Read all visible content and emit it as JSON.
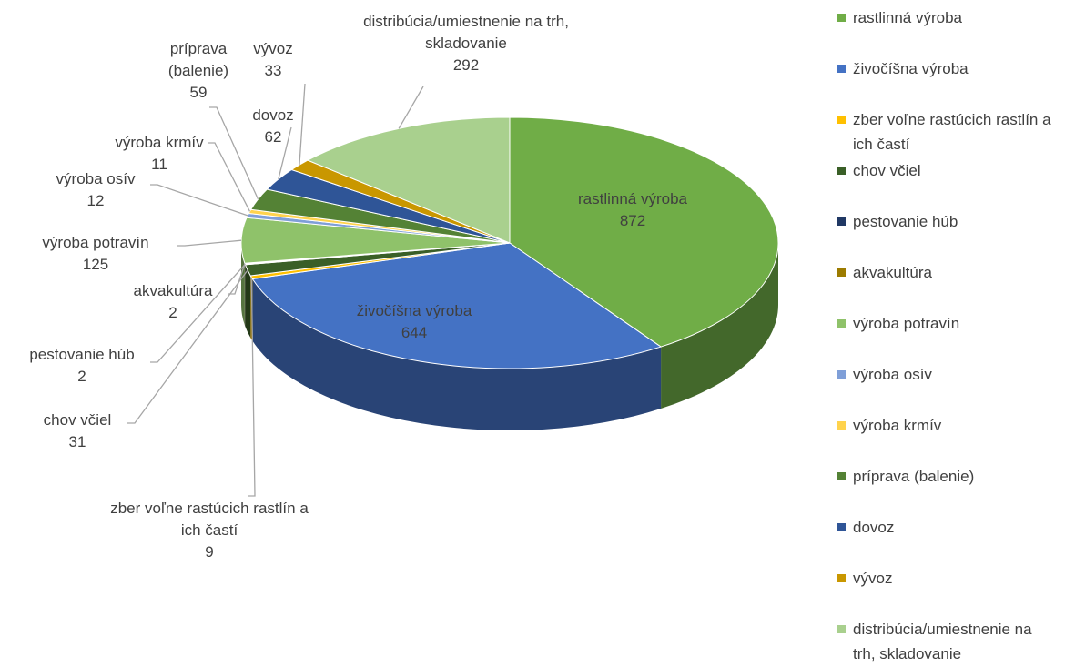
{
  "chart_data": {
    "type": "pie",
    "categories": [
      "rastlinná výroba",
      "živočíšna výroba",
      "zber voľne rastúcich rastlín a ich častí",
      "chov včiel",
      "pestovanie húb",
      "akvakultúra",
      "výroba potravín",
      "výroba osív",
      "výroba krmív",
      "príprava (balenie)",
      "dovoz",
      "vývoz",
      "distribúcia/umiestnenie na trh, skladovanie"
    ],
    "values": [
      872,
      644,
      9,
      31,
      2,
      2,
      125,
      12,
      11,
      59,
      62,
      33,
      292
    ],
    "colors": [
      "#70ad47",
      "#4472c4",
      "#ffc000",
      "#3a5f27",
      "#203864",
      "#9c7b00",
      "#8fc26a",
      "#7f9fd8",
      "#ffd34d",
      "#548235",
      "#2f5597",
      "#c99700",
      "#a9d08e"
    ],
    "legend": "right"
  }
}
